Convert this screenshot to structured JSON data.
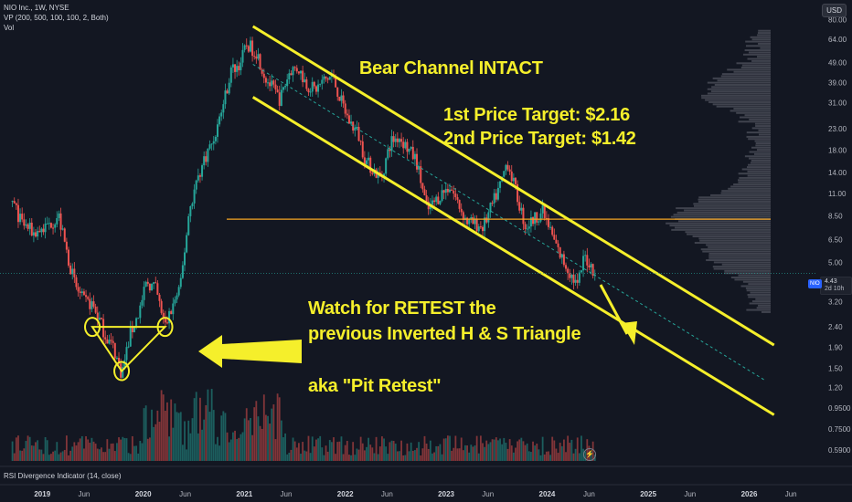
{
  "header": {
    "title": "NIO Inc., 1W, NYSE",
    "vp": "VP (200, 500, 100, 100, 2, Both)",
    "vol": "Vol"
  },
  "currency_button": "USD",
  "indicator_label": "RSI Divergence Indicator (14, close)",
  "price_tag": {
    "symbol": "NIO",
    "price": "4.43",
    "countdown": "2d 10h"
  },
  "annotations": {
    "bear_channel": "Bear Channel INTACT",
    "target1": "1st Price Target: $2.16",
    "target2": "2nd Price Target: $1.42",
    "watch_line1": "Watch for RETEST the",
    "watch_line2": "previous Inverted H & S Triangle",
    "aka": "aka \"Pit Retest\""
  },
  "colors": {
    "background": "#131722",
    "annotation": "#f5ef2b",
    "bull_candle": "#26a69a",
    "bear_candle": "#ef5350",
    "horizontal_level": "#f5a623",
    "volume_profile": "#787b86"
  },
  "chart_data": {
    "type": "candlestick",
    "symbol": "NIO",
    "interval": "1W",
    "scale": "log",
    "y_ticks": [
      80.0,
      64.0,
      49.0,
      39.0,
      31.0,
      23.0,
      18.0,
      14.0,
      11.0,
      8.5,
      6.5,
      5.0,
      3.8,
      3.2,
      2.4,
      1.9,
      1.5,
      1.2,
      0.95,
      0.75,
      0.59
    ],
    "y_tick_labels": [
      "80.00",
      "64.00",
      "49.00",
      "39.00",
      "31.00",
      "23.00",
      "18.00",
      "14.00",
      "11.00",
      "8.50",
      "6.50",
      "5.00",
      "3.80",
      "3.20",
      "2.40",
      "1.90",
      "1.50",
      "1.20",
      "0.9500",
      "0.7500",
      "0.5900"
    ],
    "x_ticks": [
      {
        "label": "2019",
        "date": "2019-01-01"
      },
      {
        "label": "Jun",
        "date": "2019-06-01"
      },
      {
        "label": "2020",
        "date": "2020-01-01"
      },
      {
        "label": "Jun",
        "date": "2020-06-01"
      },
      {
        "label": "2021",
        "date": "2021-01-01"
      },
      {
        "label": "Jun",
        "date": "2021-06-01"
      },
      {
        "label": "2022",
        "date": "2022-01-01"
      },
      {
        "label": "Jun",
        "date": "2022-06-01"
      },
      {
        "label": "2023",
        "date": "2023-01-01"
      },
      {
        "label": "Jun",
        "date": "2023-06-01"
      },
      {
        "label": "2024",
        "date": "2024-01-01"
      },
      {
        "label": "Jun",
        "date": "2024-06-01"
      },
      {
        "label": "2025",
        "date": "2025-01-01"
      },
      {
        "label": "Jun",
        "date": "2025-06-01"
      },
      {
        "label": "2026",
        "date": "2026-01-01"
      },
      {
        "label": "Jun",
        "date": "2026-06-01"
      }
    ],
    "x_range": [
      "2018-08-01",
      "2026-09-01"
    ],
    "y_range": [
      0.52,
      92
    ],
    "price_path": [
      [
        "2018-09-15",
        10.0
      ],
      [
        "2018-10-15",
        8.0
      ],
      [
        "2018-12-01",
        7.0
      ],
      [
        "2019-01-15",
        7.5
      ],
      [
        "2019-03-01",
        8.5
      ],
      [
        "2019-04-01",
        5.5
      ],
      [
        "2019-05-01",
        3.8
      ],
      [
        "2019-06-01",
        3.2
      ],
      [
        "2019-07-01",
        3.1
      ],
      [
        "2019-08-01",
        2.5
      ],
      [
        "2019-08-15",
        2.2
      ],
      [
        "2019-09-15",
        1.9
      ],
      [
        "2019-10-15",
        1.4
      ],
      [
        "2019-11-15",
        2.2
      ],
      [
        "2019-12-15",
        2.8
      ],
      [
        "2020-01-15",
        4.0
      ],
      [
        "2020-02-15",
        3.7
      ],
      [
        "2020-03-20",
        2.4
      ],
      [
        "2020-04-15",
        3.0
      ],
      [
        "2020-05-15",
        3.8
      ],
      [
        "2020-06-15",
        9.0
      ],
      [
        "2020-07-15",
        13.0
      ],
      [
        "2020-08-15",
        17.0
      ],
      [
        "2020-09-15",
        21.0
      ],
      [
        "2020-10-15",
        30.0
      ],
      [
        "2020-11-15",
        45.0
      ],
      [
        "2020-12-15",
        48.0
      ],
      [
        "2021-01-10",
        60.0
      ],
      [
        "2021-02-15",
        55.0
      ],
      [
        "2021-03-15",
        42.0
      ],
      [
        "2021-05-10",
        32.0
      ],
      [
        "2021-06-15",
        45.0
      ],
      [
        "2021-07-15",
        46.0
      ],
      [
        "2021-08-15",
        38.0
      ],
      [
        "2021-09-15",
        36.0
      ],
      [
        "2021-10-15",
        40.0
      ],
      [
        "2021-11-15",
        42.0
      ],
      [
        "2021-12-15",
        32.0
      ],
      [
        "2022-01-15",
        25.0
      ],
      [
        "2022-02-15",
        22.0
      ],
      [
        "2022-03-15",
        16.0
      ],
      [
        "2022-05-10",
        13.0
      ],
      [
        "2022-06-15",
        20.0
      ],
      [
        "2022-07-15",
        21.0
      ],
      [
        "2022-09-15",
        16.0
      ],
      [
        "2022-10-25",
        9.0
      ],
      [
        "2022-12-15",
        11.0
      ],
      [
        "2023-01-15",
        12.0
      ],
      [
        "2023-03-15",
        8.0
      ],
      [
        "2023-05-15",
        7.5
      ],
      [
        "2023-07-15",
        12.0
      ],
      [
        "2023-08-10",
        16.0
      ],
      [
        "2023-10-15",
        7.5
      ],
      [
        "2023-12-15",
        9.0
      ],
      [
        "2024-02-15",
        5.5
      ],
      [
        "2024-04-20",
        3.8
      ],
      [
        "2024-05-15",
        5.4
      ],
      [
        "2024-06-25",
        4.43
      ]
    ],
    "last_price": 4.43,
    "horizontal_level": 8.2,
    "bear_channel": {
      "upper": [
        [
          "2021-02-01",
          74.0
        ],
        [
          "2026-04-01",
          1.95
        ]
      ],
      "lower": [
        [
          "2021-02-01",
          33.0
        ],
        [
          "2026-04-01",
          0.88
        ]
      ],
      "midline": [
        [
          "2021-02-01",
          48.0
        ],
        [
          "2026-03-01",
          1.3
        ]
      ]
    },
    "pattern_points": [
      {
        "date": "2019-07-01",
        "price": 2.4
      },
      {
        "date": "2019-10-15",
        "price": 1.45
      },
      {
        "date": "2020-03-20",
        "price": 2.4
      }
    ],
    "volume_unit": "shares"
  }
}
